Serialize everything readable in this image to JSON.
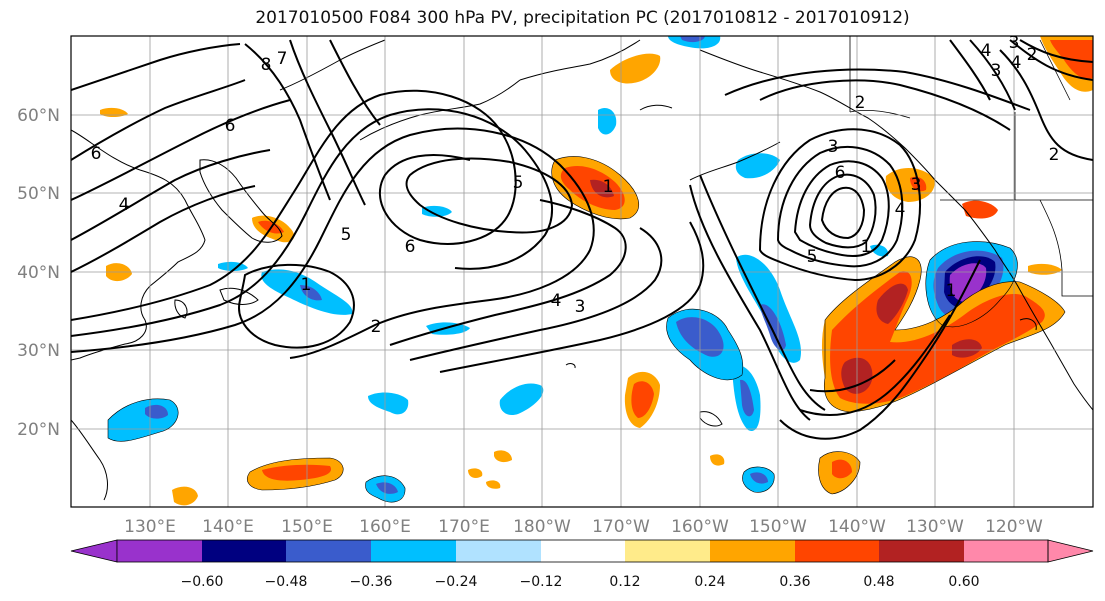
{
  "title": "2017010500 F084 300 hPa PV, precipitation PC (2017010812 - 2017010912)",
  "map": {
    "lon_labels": [
      "130°E",
      "140°E",
      "150°E",
      "160°E",
      "170°E",
      "180°W",
      "170°W",
      "160°W",
      "150°W",
      "140°W",
      "130°W",
      "120°W"
    ],
    "lat_labels": [
      "60°N",
      "50°N",
      "40°N",
      "30°N",
      "20°N"
    ],
    "contour_labels": [
      "8",
      "7",
      "6",
      "6",
      "5",
      "5",
      "6",
      "4",
      "3",
      "2",
      "1",
      "3",
      "6",
      "5",
      "1",
      "2",
      "4",
      "3",
      "4",
      "1",
      "2",
      "4",
      "3",
      "4",
      "3",
      "2",
      "1"
    ],
    "grid": true,
    "projection": "cylindrical",
    "contour_color": "#000000"
  },
  "colorbar": {
    "ticks": [
      "−0.60",
      "−0.48",
      "−0.36",
      "−0.24",
      "−0.12",
      "0.12",
      "0.24",
      "0.36",
      "0.48",
      "0.60"
    ],
    "colors": [
      "#9932cc",
      "#000080",
      "#3a5ccc",
      "#00bfff",
      "#b0e2ff",
      "#ffffff",
      "#ffeb8a",
      "#ffa500",
      "#ff4500",
      "#b22222",
      "#ff88aa"
    ],
    "extend": "both"
  }
}
